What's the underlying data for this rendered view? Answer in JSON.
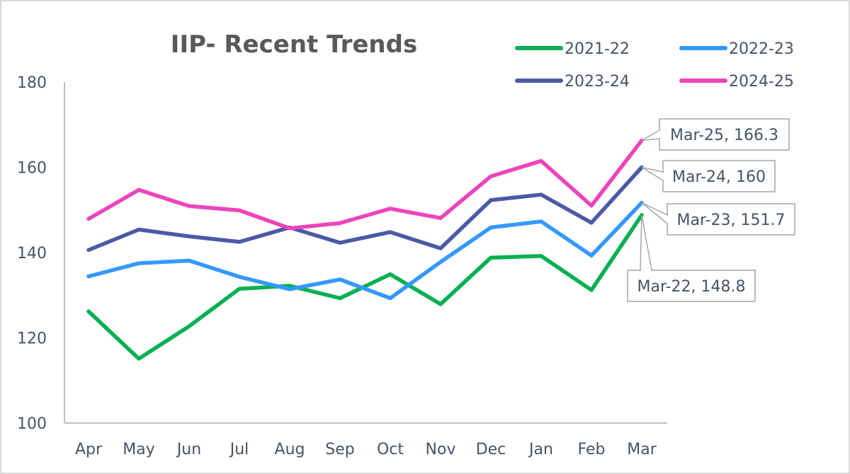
{
  "chart_data": {
    "type": "line",
    "title": "IIP- Recent Trends",
    "xlabel": "",
    "ylabel": "",
    "categories": [
      "Apr",
      "May",
      "Jun",
      "Jul",
      "Aug",
      "Sep",
      "Oct",
      "Nov",
      "Dec",
      "Jan",
      "Feb",
      "Mar"
    ],
    "ylim": [
      100,
      180
    ],
    "yticks": [
      "100",
      "120",
      "140",
      "160",
      "180"
    ],
    "grid": false,
    "legend_position": "top-right",
    "series": [
      {
        "name": "2021-22",
        "color": "#00b050",
        "values": [
          126.2,
          115.1,
          122.7,
          131.5,
          132.2,
          129.3,
          134.9,
          127.9,
          138.8,
          139.2,
          131.2,
          148.8
        ]
      },
      {
        "name": "2022-23",
        "color": "#3399ff",
        "values": [
          134.4,
          137.5,
          138.1,
          134.3,
          131.4,
          133.7,
          129.3,
          137.8,
          145.9,
          147.3,
          139.3,
          151.7
        ]
      },
      {
        "name": "2023-24",
        "color": "#4b5aa6",
        "values": [
          140.6,
          145.4,
          143.8,
          142.5,
          145.9,
          142.3,
          144.8,
          141.0,
          152.3,
          153.6,
          147.0,
          160.0
        ]
      },
      {
        "name": "2024-25",
        "color": "#ee44bb",
        "values": [
          147.9,
          154.7,
          150.9,
          149.9,
          145.7,
          146.9,
          150.3,
          148.1,
          157.9,
          161.5,
          151.0,
          166.3
        ]
      }
    ],
    "annotations": [
      {
        "series": "2024-25",
        "text": "Mar-25, 166.3"
      },
      {
        "series": "2023-24",
        "text": "Mar-24, 160"
      },
      {
        "series": "2022-23",
        "text": "Mar-23, 151.7"
      },
      {
        "series": "2021-22",
        "text": "Mar-22, 148.8"
      }
    ]
  }
}
